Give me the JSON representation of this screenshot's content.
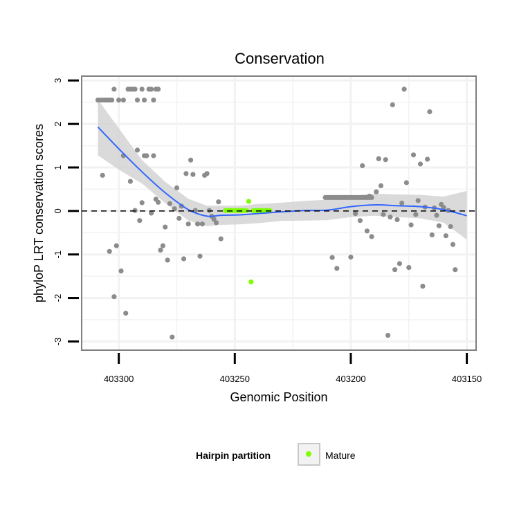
{
  "chart_data": {
    "type": "scatter",
    "title": "Conservation",
    "xlabel": "Genomic Position",
    "ylabel": "phyloP LRT conservation scores",
    "x_reversed": true,
    "xlim": [
      403316,
      403146
    ],
    "ylim": [
      -3.2,
      3.1
    ],
    "x_ticks": [
      403300,
      403250,
      403200,
      403150
    ],
    "y_ticks": [
      -3,
      -2,
      -1,
      0,
      1,
      2,
      3
    ],
    "y_tick_labels": [
      "-3",
      "-2",
      "-1",
      "0",
      "1",
      "2",
      "3"
    ],
    "grid": true,
    "reference_line": {
      "y": 0,
      "style": "dashed"
    },
    "legend": {
      "title": "Hairpin partition",
      "placement": "bottom",
      "entries": [
        {
          "label": "Mature",
          "color": "#7fff00"
        }
      ]
    },
    "colors": {
      "points": "#8c8c8c",
      "mature": "#7fff00",
      "smooth": "#3366ff",
      "band": "#d3d3d3",
      "panel_border": "#7f7f7f",
      "grid": "#f2f2f2"
    },
    "series": [
      {
        "kind": "points",
        "group": "other",
        "points": [
          [
            403309,
            2.55
          ],
          [
            403308,
            2.55
          ],
          [
            403307,
            2.55
          ],
          [
            403306,
            2.55
          ],
          [
            403305,
            2.55
          ],
          [
            403304,
            2.55
          ],
          [
            403303,
            2.55
          ],
          [
            403302,
            2.8
          ],
          [
            403300,
            2.55
          ],
          [
            403298,
            2.55
          ],
          [
            403296,
            2.8
          ],
          [
            403295,
            2.8
          ],
          [
            403294,
            2.8
          ],
          [
            403293,
            2.8
          ],
          [
            403292,
            2.55
          ],
          [
            403290,
            2.8
          ],
          [
            403289,
            2.55
          ],
          [
            403287,
            2.8
          ],
          [
            403286,
            2.8
          ],
          [
            403285,
            2.55
          ],
          [
            403284,
            2.8
          ],
          [
            403283,
            2.8
          ],
          [
            403307,
            0.82
          ],
          [
            403304,
            -0.93
          ],
          [
            403302,
            -1.97
          ],
          [
            403301,
            -0.8
          ],
          [
            403299,
            -1.38
          ],
          [
            403298,
            1.27
          ],
          [
            403297,
            -2.35
          ],
          [
            403295,
            0.68
          ],
          [
            403293,
            0.01
          ],
          [
            403292,
            1.4
          ],
          [
            403291,
            -0.22
          ],
          [
            403290,
            0.19
          ],
          [
            403289,
            1.27
          ],
          [
            403288,
            1.27
          ],
          [
            403286,
            -0.05
          ],
          [
            403285,
            1.27
          ],
          [
            403284,
            0.27
          ],
          [
            403283,
            0.2
          ],
          [
            403282,
            -0.9
          ],
          [
            403281,
            -0.8
          ],
          [
            403280,
            -0.37
          ],
          [
            403279,
            -1.13
          ],
          [
            403278,
            0.17
          ],
          [
            403277,
            -2.9
          ],
          [
            403276,
            0.05
          ],
          [
            403275,
            0.53
          ],
          [
            403274,
            -0.17
          ],
          [
            403273,
            0.11
          ],
          [
            403272,
            -1.1
          ],
          [
            403271,
            0.86
          ],
          [
            403270,
            -0.3
          ],
          [
            403269,
            1.17
          ],
          [
            403268,
            0.84
          ],
          [
            403267,
            0.01
          ],
          [
            403266,
            -0.3
          ],
          [
            403265,
            -1.04
          ],
          [
            403264,
            -0.3
          ],
          [
            403263,
            0.82
          ],
          [
            403262,
            0.86
          ],
          [
            403261,
            0.01
          ],
          [
            403260,
            -0.12
          ],
          [
            403259,
            -0.19
          ],
          [
            403258,
            -0.27
          ],
          [
            403257,
            0.21
          ],
          [
            403256,
            -0.64
          ],
          [
            403211,
            0.31
          ],
          [
            403210,
            0.31
          ],
          [
            403209,
            0.31
          ],
          [
            403208,
            0.31
          ],
          [
            403207,
            0.31
          ],
          [
            403206,
            0.31
          ],
          [
            403205,
            0.31
          ],
          [
            403204,
            0.31
          ],
          [
            403203,
            0.31
          ],
          [
            403202,
            0.31
          ],
          [
            403201,
            0.31
          ],
          [
            403200,
            0.31
          ],
          [
            403199,
            0.31
          ],
          [
            403198,
            0.31
          ],
          [
            403197,
            0.31
          ],
          [
            403196,
            0.31
          ],
          [
            403195,
            0.31
          ],
          [
            403194,
            0.31
          ],
          [
            403193,
            0.31
          ],
          [
            403192,
            0.31
          ],
          [
            403191,
            0.31
          ],
          [
            403208,
            -1.07
          ],
          [
            403206,
            -1.32
          ],
          [
            403200,
            -1.06
          ],
          [
            403198,
            -0.06
          ],
          [
            403196,
            -0.22
          ],
          [
            403195,
            1.04
          ],
          [
            403193,
            -0.46
          ],
          [
            403192,
            0.34
          ],
          [
            403191,
            -0.59
          ],
          [
            403189,
            0.44
          ],
          [
            403188,
            1.2
          ],
          [
            403187,
            0.58
          ],
          [
            403186,
            -0.08
          ],
          [
            403185,
            1.18
          ],
          [
            403184,
            -2.86
          ],
          [
            403183,
            -0.14
          ],
          [
            403182,
            2.44
          ],
          [
            403181,
            -1.35
          ],
          [
            403180,
            -0.2
          ],
          [
            403179,
            -1.21
          ],
          [
            403178,
            0.18
          ],
          [
            403177,
            2.8
          ],
          [
            403176,
            0.65
          ],
          [
            403175,
            -1.3
          ],
          [
            403174,
            -0.32
          ],
          [
            403173,
            1.29
          ],
          [
            403172,
            -0.08
          ],
          [
            403171,
            0.24
          ],
          [
            403170,
            1.08
          ],
          [
            403169,
            -1.73
          ],
          [
            403168,
            0.09
          ],
          [
            403167,
            1.19
          ],
          [
            403166,
            2.28
          ],
          [
            403165,
            -0.55
          ],
          [
            403164,
            0.07
          ],
          [
            403163,
            -0.1
          ],
          [
            403162,
            -0.34
          ],
          [
            403161,
            0.15
          ],
          [
            403160,
            0.08
          ],
          [
            403159,
            -0.57
          ],
          [
            403158,
            0.01
          ],
          [
            403157,
            -0.36
          ],
          [
            403156,
            -0.77
          ],
          [
            403155,
            -1.35
          ]
        ]
      },
      {
        "kind": "points",
        "group": "Mature",
        "points": [
          [
            403254,
            0.01
          ],
          [
            403253,
            0.01
          ],
          [
            403252,
            0.01
          ],
          [
            403251,
            0.01
          ],
          [
            403250,
            0.01
          ],
          [
            403249,
            0.01
          ],
          [
            403248,
            0.01
          ],
          [
            403247,
            0.01
          ],
          [
            403246,
            0.01
          ],
          [
            403245,
            0.01
          ],
          [
            403244,
            0.22
          ],
          [
            403243,
            -1.63
          ],
          [
            403242,
            0.01
          ],
          [
            403241,
            0.01
          ],
          [
            403240,
            0.01
          ],
          [
            403239,
            0.01
          ],
          [
            403238,
            0.01
          ],
          [
            403237,
            0.01
          ],
          [
            403236,
            0.01
          ],
          [
            403235,
            0.01
          ]
        ]
      },
      {
        "kind": "smooth",
        "x": [
          403309,
          403300,
          403290,
          403280,
          403270,
          403262,
          403256,
          403248,
          403240,
          403230,
          403220,
          403210,
          403200,
          403190,
          403180,
          403170,
          403160,
          403150
        ],
        "y": [
          1.93,
          1.43,
          0.9,
          0.42,
          0.03,
          -0.12,
          -0.1,
          -0.09,
          -0.06,
          -0.02,
          0.01,
          0.02,
          0.1,
          0.14,
          0.12,
          0.1,
          0.03,
          -0.11
        ],
        "lower": [
          1.28,
          0.95,
          0.63,
          0.18,
          -0.22,
          -0.35,
          -0.32,
          -0.31,
          -0.28,
          -0.23,
          -0.22,
          -0.21,
          -0.14,
          -0.11,
          -0.14,
          -0.17,
          -0.27,
          -0.66
        ],
        "upper": [
          2.56,
          1.9,
          1.17,
          0.67,
          0.28,
          0.12,
          0.12,
          0.12,
          0.16,
          0.19,
          0.23,
          0.26,
          0.34,
          0.4,
          0.38,
          0.37,
          0.33,
          0.46
        ]
      }
    ]
  }
}
